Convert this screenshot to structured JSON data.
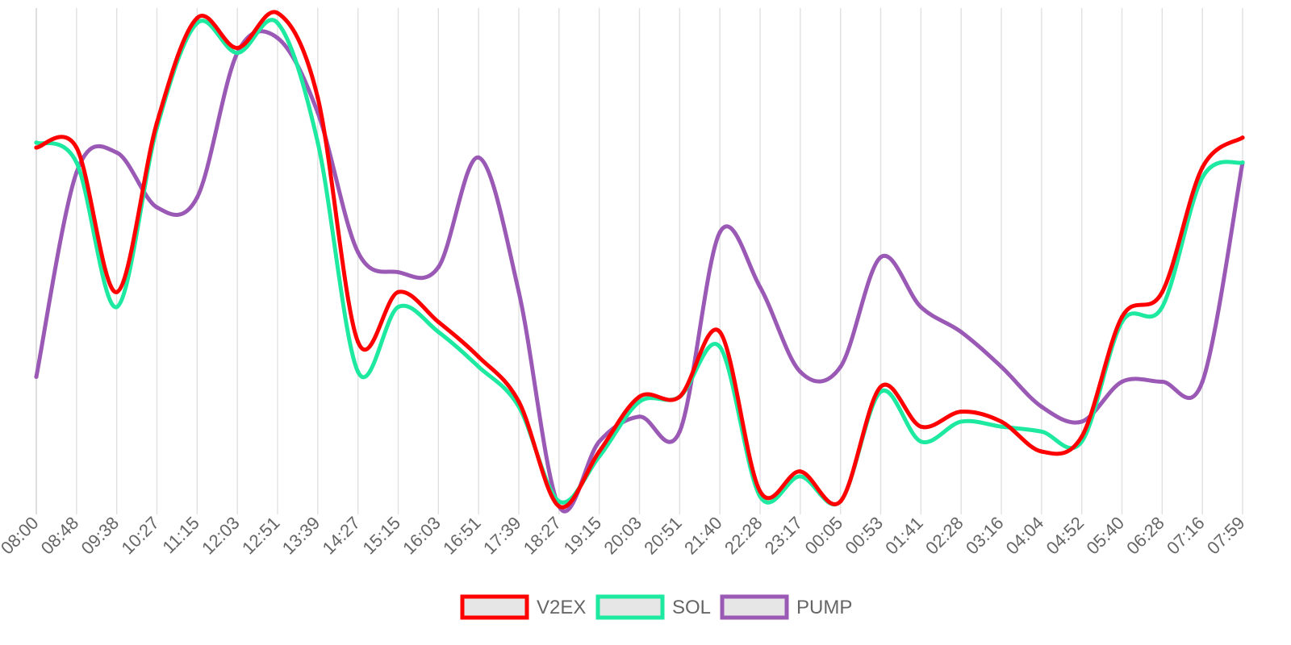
{
  "chart_data": {
    "type": "line",
    "title": "",
    "xlabel": "",
    "ylabel": "",
    "ylim": [
      0,
      100
    ],
    "grid": "vertical",
    "legend_position": "bottom",
    "x": [
      "08:00",
      "08:48",
      "09:38",
      "10:27",
      "11:15",
      "12:03",
      "12:51",
      "13:39",
      "14:27",
      "15:15",
      "16:03",
      "16:51",
      "17:39",
      "18:27",
      "19:15",
      "20:03",
      "20:51",
      "21:40",
      "22:28",
      "23:17",
      "00:05",
      "00:53",
      "01:41",
      "02:28",
      "03:16",
      "04:04",
      "04:52",
      "05:40",
      "06:28",
      "07:16",
      "07:59"
    ],
    "series": [
      {
        "name": "V2EX",
        "color": "#ff0000",
        "values": [
          72,
          72,
          43,
          77,
          98,
          92,
          99,
          82,
          33,
          43,
          37,
          30,
          21,
          0,
          11,
          22,
          22,
          35,
          3,
          7,
          1,
          24,
          16,
          19,
          17,
          11,
          14,
          38,
          43,
          68,
          74
        ]
      },
      {
        "name": "SOL",
        "color": "#1de9a0",
        "values": [
          73,
          69,
          40,
          76,
          97,
          91,
          97,
          73,
          27,
          40,
          35,
          28,
          20,
          1,
          10,
          21,
          22,
          32,
          2,
          6,
          1,
          23,
          13,
          17,
          16,
          15,
          13,
          37,
          40,
          66,
          69
        ]
      },
      {
        "name": "PUMP",
        "color": "#9b59b6",
        "values": [
          26,
          67,
          71,
          60,
          62,
          91,
          94,
          79,
          51,
          47,
          48,
          70,
          43,
          0,
          13,
          18,
          15,
          55,
          44,
          27,
          28,
          50,
          40,
          35,
          28,
          20,
          17,
          25,
          25,
          25,
          69
        ]
      }
    ]
  }
}
